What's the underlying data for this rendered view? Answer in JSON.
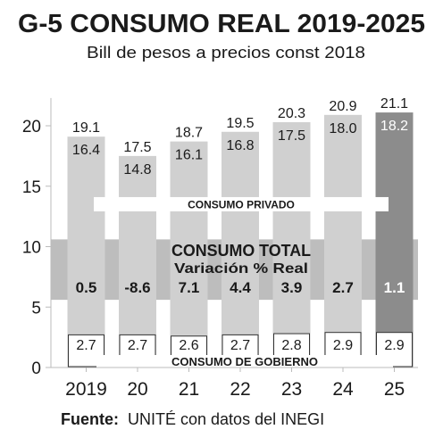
{
  "title": "G-5  CONSUMO REAL 2019-2025",
  "subtitle": "Bill de pesos a precios const 2018",
  "source_label": "Fuente:",
  "source_text": "UNITÉ con datos del INEGI",
  "colors": {
    "bar": "#d0d0d0",
    "bar_highlight": "#8c8c8c",
    "band": "#bdbdbd",
    "gov_box": "#ffffff",
    "text": "#1a1a1a",
    "grid": "#bbbbbb"
  },
  "chart_data": {
    "type": "bar",
    "categories": [
      "2019",
      "20",
      "21",
      "22",
      "23",
      "24",
      "25"
    ],
    "ylim": [
      0,
      22
    ],
    "yticks": [
      0,
      5,
      10,
      15,
      20
    ],
    "highlight_index": 6,
    "series": [
      {
        "name": "CONSUMO PRIVADO",
        "values": [
          16.4,
          14.8,
          16.1,
          16.8,
          17.5,
          18.0,
          18.2
        ]
      },
      {
        "name": "CONSUMO DE GOBIERNO",
        "values": [
          2.7,
          2.7,
          2.6,
          2.7,
          2.8,
          2.9,
          2.9
        ]
      },
      {
        "name": "CONSUMO TOTAL",
        "values": [
          19.1,
          17.5,
          18.7,
          19.5,
          20.3,
          20.9,
          21.1
        ]
      }
    ],
    "total_variation": {
      "label": "CONSUMO TOTAL",
      "sublabel": "Variación % Real",
      "values": [
        "0.5",
        "-8.6",
        "7.1",
        "4.4",
        "3.9",
        "2.7",
        "1.1"
      ]
    },
    "band_labels": {
      "private": "CONSUMO PRIVADO",
      "government": "CONSUMO DE GOBIERNO"
    }
  }
}
